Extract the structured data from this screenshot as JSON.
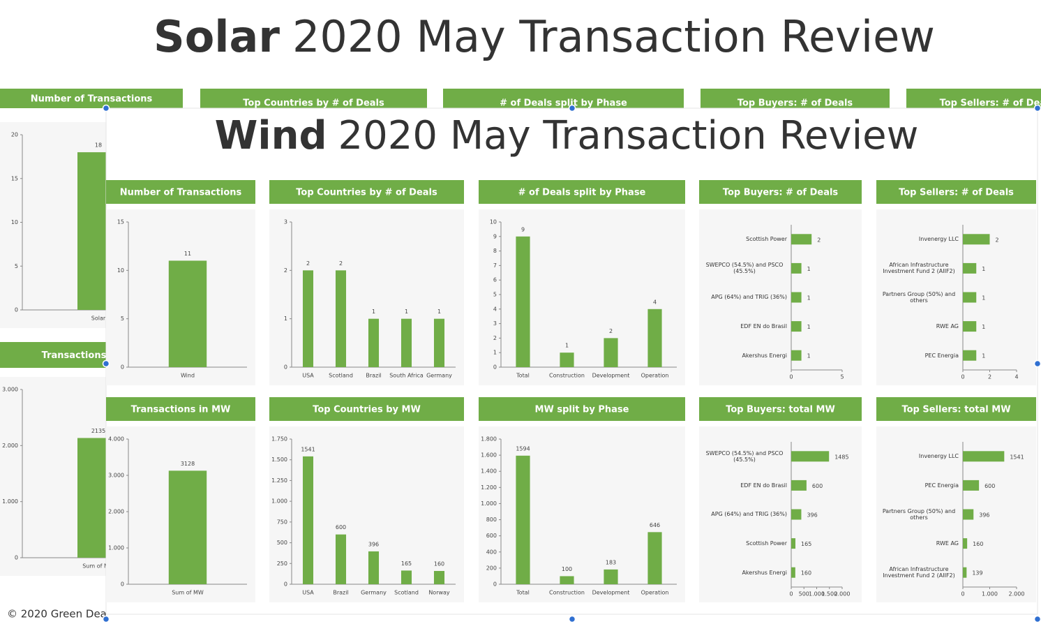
{
  "solar": {
    "title_bold": "Solar",
    "title_rest": "2020 May Transaction Review",
    "headers": [
      "Top Countries by # of Deals",
      "# of Deals split by Phase",
      "Top Buyers: # of Deals",
      "Top Sellers: # of Deals"
    ],
    "footer": "© 2020 Green Dea"
  },
  "wind": {
    "title_bold": "Wind",
    "title_rest": "2020 May Transaction Review"
  },
  "chart_data": [
    {
      "type": "bar",
      "title": "Number of Transactions",
      "categories": [
        "Solar"
      ],
      "values": [
        18
      ],
      "color": "#70ad47",
      "ylim": [
        0,
        20
      ],
      "yticks": [
        0,
        5,
        10,
        15,
        20
      ]
    },
    {
      "type": "bar",
      "title": "Transactions in MW",
      "categories": [
        "Sum of MW"
      ],
      "values": [
        2135
      ],
      "color": "#70ad47",
      "ylim": [
        0,
        3000
      ],
      "yticks": [
        0,
        {
          "value": 1000,
          "label": "1.000"
        },
        {
          "value": 2000,
          "label": "2.000"
        },
        {
          "value": 3000,
          "label": "3.000"
        }
      ]
    },
    {
      "type": "bar",
      "title": "Number of Transactions",
      "categories": [
        "Wind"
      ],
      "values": [
        11
      ],
      "color": "#70ad47",
      "ylim": [
        0,
        15
      ],
      "yticks": [
        0,
        5,
        10,
        15
      ]
    },
    {
      "type": "bar",
      "title": "Top Countries by # of Deals",
      "categories": [
        "USA",
        "Scotland",
        "Brazil",
        "South Africa",
        "Germany"
      ],
      "values": [
        2,
        2,
        1,
        1,
        1
      ],
      "color": "#70ad47",
      "ylim": [
        0,
        3
      ],
      "yticks": [
        0,
        1,
        2,
        3
      ]
    },
    {
      "type": "bar",
      "title": "# of Deals split by Phase",
      "categories": [
        "Total",
        "Construction",
        "Development",
        "Operation"
      ],
      "values": [
        9,
        1,
        2,
        4
      ],
      "color": "#70ad47",
      "ylim": [
        0,
        10
      ],
      "yticks": [
        0,
        1,
        2,
        3,
        4,
        5,
        6,
        7,
        8,
        9,
        10
      ]
    },
    {
      "type": "hbar",
      "title": "Top Buyers: # of Deals",
      "categories": [
        "Scottish Power",
        "SWEPCO (54.5%) and PSCO (45.5%)",
        "APG (64%) and TRIG (36%)",
        "EDF EN do Brasil",
        "Akershus Energi"
      ],
      "values": [
        2,
        1,
        1,
        1,
        1
      ],
      "color": "#70ad47",
      "xlim": [
        0,
        5
      ],
      "xticks": [
        0,
        5
      ]
    },
    {
      "type": "hbar",
      "title": "Top Sellers: # of Deals",
      "categories": [
        "Invenergy LLC",
        "African Infrastructure Investment Fund 2 (AIIF2)",
        "Partners Group (50%) and others",
        "RWE AG",
        "PEC Energia"
      ],
      "values": [
        2,
        1,
        1,
        1,
        1
      ],
      "color": "#70ad47",
      "xlim": [
        0,
        4
      ],
      "xticks": [
        0,
        2,
        4
      ]
    },
    {
      "type": "bar",
      "title": "Transactions in MW",
      "categories": [
        "Sum of MW"
      ],
      "values": [
        3128
      ],
      "color": "#70ad47",
      "ylim": [
        0,
        4000
      ],
      "yticks": [
        0,
        {
          "value": 1000,
          "label": "1.000"
        },
        {
          "value": 2000,
          "label": "2.000"
        },
        {
          "value": 3000,
          "label": "3.000"
        },
        {
          "value": 4000,
          "label": "4.000"
        }
      ]
    },
    {
      "type": "bar",
      "title": "Top Countries by MW",
      "categories": [
        "USA",
        "Brazil",
        "Germany",
        "Scotland",
        "Norway"
      ],
      "values": [
        1541,
        600,
        396,
        165,
        160
      ],
      "color": "#70ad47",
      "ylim": [
        0,
        1750
      ],
      "yticks": [
        0,
        250,
        500,
        750,
        {
          "value": 1000,
          "label": "1.000"
        },
        {
          "value": 1250,
          "label": "1.250"
        },
        {
          "value": 1500,
          "label": "1.500"
        },
        {
          "value": 1750,
          "label": "1.750"
        }
      ]
    },
    {
      "type": "bar",
      "title": "MW split by Phase",
      "categories": [
        "Total",
        "Construction",
        "Development",
        "Operation"
      ],
      "values": [
        1594,
        100,
        183,
        646
      ],
      "color": "#70ad47",
      "ylim": [
        0,
        1800
      ],
      "yticks": [
        0,
        200,
        400,
        600,
        800,
        {
          "value": 1000,
          "label": "1.000"
        },
        {
          "value": 1200,
          "label": "1.200"
        },
        {
          "value": 1400,
          "label": "1.400"
        },
        {
          "value": 1600,
          "label": "1.600"
        },
        {
          "value": 1800,
          "label": "1.800"
        }
      ]
    },
    {
      "type": "hbar",
      "title": "Top Buyers: total MW",
      "categories": [
        "SWEPCO (54.5%) and PSCO (45.5%)",
        "EDF EN do Brasil",
        "APG (64%) and TRIG (36%)",
        "Scottish Power",
        "Akershus Energi"
      ],
      "values": [
        1485,
        600,
        396,
        165,
        160
      ],
      "color": "#70ad47",
      "xlim": [
        0,
        2000
      ],
      "xticks": [
        0,
        500,
        {
          "value": 1000,
          "label": "1.000"
        },
        {
          "value": 1500,
          "label": "1.500"
        },
        {
          "value": 2000,
          "label": "2.000"
        }
      ]
    },
    {
      "type": "hbar",
      "title": "Top Sellers: total MW",
      "categories": [
        "Invenergy LLC",
        "PEC Energia",
        "Partners Group (50%) and others",
        "RWE AG",
        "African Infrastructure Investment Fund 2 (AIIF2)"
      ],
      "values": [
        1541,
        600,
        396,
        160,
        139
      ],
      "color": "#70ad47",
      "xlim": [
        0,
        2000
      ],
      "xticks": [
        0,
        {
          "value": 1000,
          "label": "1.000"
        },
        {
          "value": 2000,
          "label": "2.000"
        }
      ]
    }
  ]
}
